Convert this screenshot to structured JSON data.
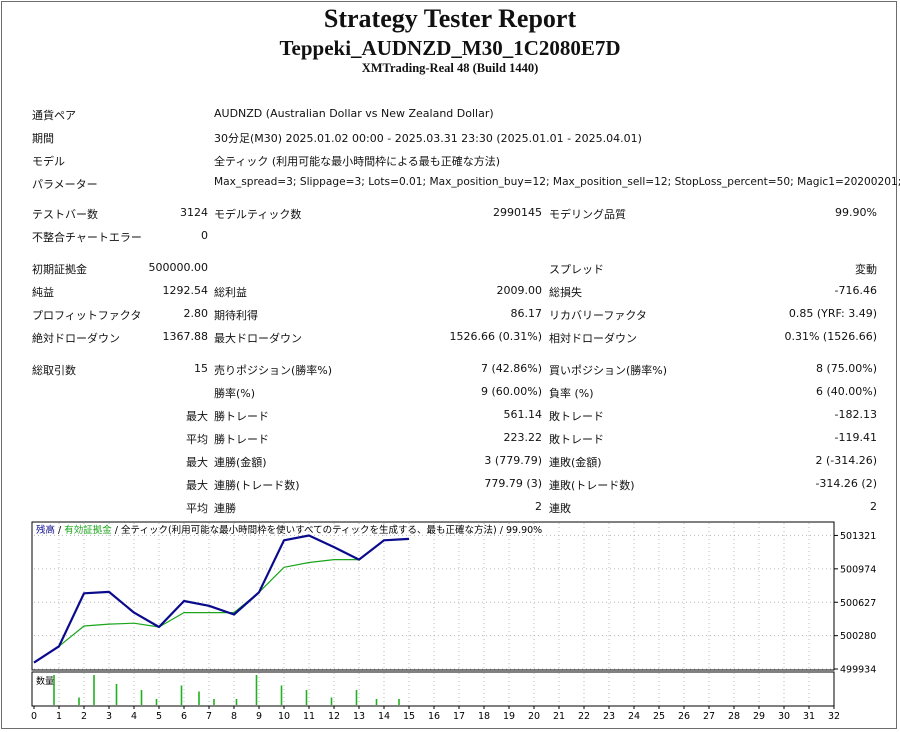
{
  "header": {
    "title": "Strategy Tester Report",
    "subtitle": "Teppeki_AUDNZD_M30_1C2080E7D",
    "server": "XMTrading-Real 48 (Build 1440)"
  },
  "settings": {
    "symbol_label": "通貨ペア",
    "symbol": "AUDNZD (Australian Dollar vs New Zealand Dollar)",
    "period_label": "期間",
    "period": "30分足(M30) 2025.01.02 00:00 - 2025.03.31 23:30 (2025.01.01 - 2025.04.01)",
    "model_label": "モデル",
    "model": "全ティック (利用可能な最小時間枠による最も正確な方法)",
    "params_label": "パラメーター",
    "params": "Max_spread=3; Slippage=3; Lots=0.01; Max_position_buy=12; Max_position_sell=12; StopLoss_percent=50; Magic1=20200201;"
  },
  "stats": {
    "bars_label": "テストバー数",
    "bars": "3124",
    "ticks_label": "モデルティック数",
    "ticks": "2990145",
    "quality_label": "モデリング品質",
    "quality": "99.90%",
    "mismatch_label": "不整合チャートエラー",
    "mismatch": "0",
    "deposit_label": "初期証拠金",
    "deposit": "500000.00",
    "spread_label": "スプレッド",
    "spread": "変動",
    "net_label": "純益",
    "net": "1292.54",
    "gross_profit_label": "総利益",
    "gross_profit": "2009.00",
    "gross_loss_label": "総損失",
    "gross_loss": "-716.46",
    "pf_label": "プロフィットファクタ",
    "pf": "2.80",
    "expected_label": "期待利得",
    "expected": "86.17",
    "recovery_label": "リカバリーファクタ",
    "recovery": "0.85 (YRF: 3.49)",
    "abs_dd_label": "絶対ドローダウン",
    "abs_dd": "1367.88",
    "max_dd_label": "最大ドローダウン",
    "max_dd": "1526.66 (0.31%)",
    "rel_dd_label": "相対ドローダウン",
    "rel_dd": "0.31% (1526.66)",
    "trades_label": "総取引数",
    "trades": "15",
    "short_label": "売りポジション(勝率%)",
    "short": "7 (42.86%)",
    "long_label": "買いポジション(勝率%)",
    "long": "8 (75.00%)",
    "winrate_label": "勝率(%)",
    "winrate": "9 (60.00%)",
    "lossrate_label": "負率 (%)",
    "lossrate": "6 (40.00%)",
    "max_word": "最大",
    "avg_word": "平均",
    "largest_win_label": "勝トレード",
    "largest_win": "561.14",
    "largest_loss_label": "敗トレード",
    "largest_loss": "-182.13",
    "avg_win_label": "勝トレード",
    "avg_win": "223.22",
    "avg_loss_label": "敗トレード",
    "avg_loss": "-119.41",
    "max_cons_win_amt_label": "連勝(金額)",
    "max_cons_win_amt": "3 (779.79)",
    "max_cons_loss_amt_label": "連敗(金額)",
    "max_cons_loss_amt": "2 (-314.26)",
    "max_cons_win_cnt_label": "連勝(トレード数)",
    "max_cons_win_cnt": "779.79 (3)",
    "max_cons_loss_cnt_label": "連敗(トレード数)",
    "max_cons_loss_cnt": "-314.26 (2)",
    "avg_cons_win_label": "連勝",
    "avg_cons_win": "2",
    "avg_cons_loss_label": "連敗",
    "avg_cons_loss": "2"
  },
  "chart_data": {
    "type": "line",
    "legend": {
      "balance": "残高",
      "equity": "有効証拠金",
      "rest": " / 全ティック(利用可能な最小時間枠を使いすべてのティックを生成する、最も正確な方法) / 99.90%",
      "sep": " / "
    },
    "colors": {
      "balance": "#0a0a8c",
      "equity": "#1aa51a",
      "volume": "#22b022"
    },
    "ylim": [
      499934,
      501450
    ],
    "yticks": [
      "501321",
      "500974",
      "500627",
      "500280",
      "499934"
    ],
    "xlim": [
      0,
      32
    ],
    "xticks": [
      "0",
      "1",
      "2",
      "3",
      "4",
      "5",
      "6",
      "7",
      "8",
      "9",
      "10",
      "11",
      "12",
      "13",
      "14",
      "15",
      "16",
      "17",
      "18",
      "19",
      "20",
      "21",
      "22",
      "23",
      "24",
      "25",
      "26",
      "27",
      "28",
      "29",
      "30",
      "31",
      "32"
    ],
    "series": [
      {
        "name": "残高",
        "x": [
          0,
          1,
          2,
          3,
          4,
          5,
          6,
          7,
          8,
          9,
          10,
          11,
          12,
          13,
          14,
          15
        ],
        "values": [
          500000,
          500170,
          500720,
          500735,
          500520,
          500370,
          500640,
          500590,
          500500,
          500730,
          501270,
          501320,
          501200,
          501070,
          501270,
          501285
        ]
      },
      {
        "name": "有効証拠金",
        "x": [
          0,
          1,
          2,
          3,
          4,
          5,
          6,
          7,
          8,
          9,
          10,
          11,
          12,
          13
        ],
        "values": [
          500000,
          500170,
          500380,
          500400,
          500410,
          500370,
          500520,
          500520,
          500520,
          500730,
          500990,
          501040,
          501070,
          501070
        ]
      }
    ],
    "volume_label": "数量",
    "volume": {
      "x": [
        0.8,
        1.8,
        2.4,
        3.3,
        4.3,
        4.9,
        5.9,
        6.6,
        7.2,
        8.1,
        8.9,
        9.9,
        10.9,
        11.9,
        12.9,
        13.7,
        14.6
      ],
      "values": [
        1,
        0.25,
        1,
        0.7,
        0.5,
        0.2,
        0.65,
        0.45,
        0.2,
        0.2,
        1,
        0.65,
        0.5,
        0.25,
        0.5,
        0.2,
        0.2
      ]
    }
  }
}
